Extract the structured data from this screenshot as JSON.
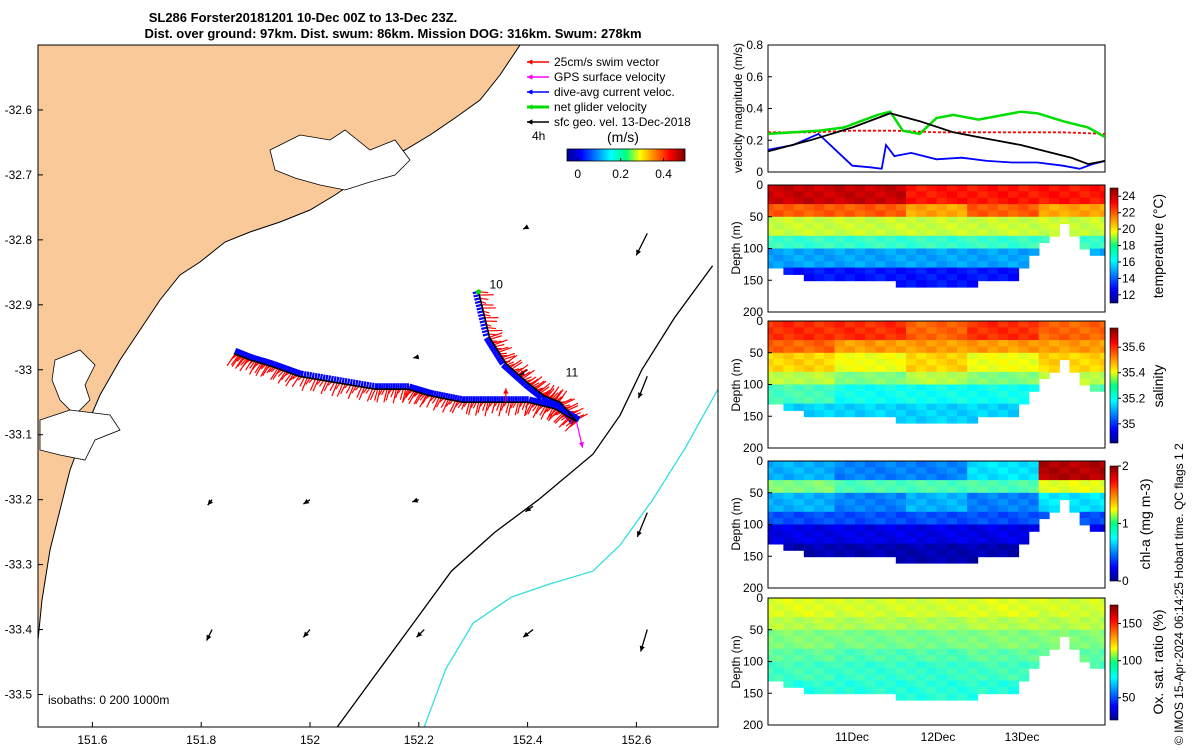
{
  "title": {
    "line1": "SL286 Forster20181201 10-Dec 00Z to 13-Dec 23Z.",
    "line2": "Dist. over ground: 97km. Dist. swum: 86km. Mission DOG: 316km. Swum: 278km"
  },
  "colors": {
    "land": "#f9c99a",
    "swim_vector": "#ff0000",
    "gps_velocity": "#ff00ff",
    "dive_avg": "#0000ff",
    "net_velocity": "#00dd00",
    "sfc_geo": "#000000",
    "isobath_200": "#000000",
    "isobath_1000": "#33dddd"
  },
  "map": {
    "legend": [
      {
        "label": "25cm/s swim vector",
        "color": "#ff0000"
      },
      {
        "label": "GPS surface velocity",
        "color": "#ff00ff"
      },
      {
        "label": "dive-avg current veloc.",
        "color": "#0000ff"
      },
      {
        "label": "net glider velocity",
        "color": "#00dd00"
      },
      {
        "label": "sfc geo. vel. 13-Dec-2018",
        "color": "#000000"
      }
    ],
    "interval_label": "4h",
    "colorbar": {
      "title": "(m/s)",
      "ticks": [
        "0",
        "0.2",
        "0.4"
      ],
      "range": [
        -0.05,
        0.5
      ]
    },
    "isobaths_label": "isobaths: 0   200  1000m",
    "xlim": [
      151.5,
      152.75
    ],
    "ylim": [
      -33.55,
      -32.5
    ],
    "xticks": [
      "151.6",
      "151.8",
      "152",
      "152.2",
      "152.4",
      "152.6"
    ],
    "yticks": [
      "-32.6",
      "-32.7",
      "-32.8",
      "-32.9",
      "-33",
      "-33.1",
      "-33.2",
      "-33.3",
      "-33.4",
      "-33.5"
    ],
    "day_labels": [
      {
        "text": "10",
        "lon": 152.33,
        "lat": -32.875
      },
      {
        "text": "11",
        "lon": 152.47,
        "lat": -33.01
      }
    ]
  },
  "chart_data": [
    {
      "type": "scatter",
      "title": "SL286 Forster20181201 10-Dec 00Z to 13-Dec 23Z.",
      "subtitle": "Dist. over ground: 97km. Dist. swum: 86km. Mission DOG: 316km. Swum: 278km",
      "xlabel": "",
      "ylabel": "",
      "xlim": [
        151.5,
        152.75
      ],
      "ylim": [
        -33.55,
        -32.5
      ],
      "glider_track": {
        "lon": [
          152.31,
          152.33,
          152.36,
          152.4,
          152.43,
          152.46,
          152.49,
          152.45,
          152.4,
          152.34,
          152.28,
          152.22,
          152.18,
          152.12,
          152.05,
          151.98,
          151.93,
          151.89,
          151.86
        ],
        "lat": [
          -32.88,
          -32.95,
          -32.99,
          -33.02,
          -33.04,
          -33.05,
          -33.08,
          -33.06,
          -33.05,
          -33.05,
          -33.05,
          -33.04,
          -33.03,
          -33.03,
          -33.02,
          -33.01,
          -32.995,
          -32.985,
          -32.975
        ]
      },
      "isobath_200": {
        "lon": [
          152.05,
          152.12,
          152.19,
          152.26,
          152.34,
          152.42,
          152.52,
          152.57,
          152.61,
          152.67,
          152.74
        ],
        "lat": [
          -33.55,
          -33.47,
          -33.39,
          -33.31,
          -33.25,
          -33.2,
          -33.13,
          -33.07,
          -33.0,
          -32.92,
          -32.84
        ]
      },
      "isobath_1000": {
        "lon": [
          152.21,
          152.25,
          152.3,
          152.37,
          152.44,
          152.52,
          152.57,
          152.63,
          152.69,
          152.75
        ],
        "lat": [
          -33.55,
          -33.46,
          -33.39,
          -33.35,
          -33.33,
          -33.31,
          -33.27,
          -33.2,
          -33.12,
          -33.03
        ]
      },
      "geo_vectors": [
        {
          "lon": 152.4,
          "lat": -32.78,
          "u": -0.04,
          "v": -0.02
        },
        {
          "lon": 152.62,
          "lat": -32.79,
          "u": -0.1,
          "v": -0.2
        },
        {
          "lon": 152.2,
          "lat": -32.98,
          "u": -0.05,
          "v": -0.01
        },
        {
          "lon": 152.4,
          "lat": -33.0,
          "u": -0.08,
          "v": -0.05
        },
        {
          "lon": 152.62,
          "lat": -33.01,
          "u": -0.08,
          "v": -0.2
        },
        {
          "lon": 151.82,
          "lat": -33.2,
          "u": -0.04,
          "v": -0.05
        },
        {
          "lon": 152.0,
          "lat": -33.2,
          "u": -0.06,
          "v": -0.04
        },
        {
          "lon": 152.2,
          "lat": -33.2,
          "u": -0.06,
          "v": -0.02
        },
        {
          "lon": 152.41,
          "lat": -33.21,
          "u": -0.07,
          "v": -0.05
        },
        {
          "lon": 152.62,
          "lat": -33.22,
          "u": -0.09,
          "v": -0.22
        },
        {
          "lon": 151.82,
          "lat": -33.4,
          "u": -0.05,
          "v": -0.1
        },
        {
          "lon": 152.0,
          "lat": -33.4,
          "u": -0.06,
          "v": -0.07
        },
        {
          "lon": 152.21,
          "lat": -33.4,
          "u": -0.07,
          "v": -0.07
        },
        {
          "lon": 152.41,
          "lat": -33.4,
          "u": -0.09,
          "v": -0.07
        },
        {
          "lon": 152.62,
          "lat": -33.4,
          "u": -0.06,
          "v": -0.2
        }
      ]
    },
    {
      "type": "line",
      "ylabel": "velocity magnitude (m/s)",
      "ylim": [
        0,
        0.8
      ],
      "yticks": [
        "0",
        "0.2",
        "0.4",
        "0.6",
        "0.8"
      ],
      "x_day_range": [
        10,
        14
      ],
      "series": [
        {
          "color": "#ff0000",
          "x": [
            10.0,
            10.5,
            11.0,
            11.5,
            12.0,
            12.5,
            13.0,
            13.5,
            14.0
          ],
          "values": [
            0.25,
            0.25,
            0.26,
            0.26,
            0.25,
            0.25,
            0.25,
            0.25,
            0.24
          ]
        },
        {
          "color": "#00dd00",
          "x": [
            10.0,
            10.3,
            10.6,
            10.9,
            11.1,
            11.3,
            11.45,
            11.6,
            11.8,
            12.0,
            12.2,
            12.5,
            12.8,
            13.0,
            13.2,
            13.5,
            13.8,
            14.0
          ],
          "values": [
            0.24,
            0.25,
            0.26,
            0.28,
            0.32,
            0.36,
            0.38,
            0.26,
            0.24,
            0.34,
            0.36,
            0.33,
            0.36,
            0.38,
            0.37,
            0.32,
            0.28,
            0.22
          ]
        },
        {
          "color": "#0000ff",
          "x": [
            10.0,
            10.3,
            10.6,
            10.8,
            11.0,
            11.2,
            11.35,
            11.4,
            11.5,
            11.7,
            12.0,
            12.3,
            12.6,
            12.9,
            13.2,
            13.5,
            13.7,
            13.85,
            14.0
          ],
          "values": [
            0.14,
            0.17,
            0.24,
            0.14,
            0.04,
            0.03,
            0.02,
            0.17,
            0.1,
            0.12,
            0.08,
            0.09,
            0.07,
            0.06,
            0.06,
            0.04,
            0.02,
            0.05,
            0.07
          ]
        },
        {
          "color": "#000000",
          "x": [
            10.0,
            10.5,
            11.0,
            11.45,
            11.8,
            12.2,
            12.6,
            13.0,
            13.3,
            13.6,
            13.8,
            14.0
          ],
          "values": [
            0.13,
            0.2,
            0.28,
            0.37,
            0.32,
            0.25,
            0.21,
            0.17,
            0.13,
            0.09,
            0.05,
            0.07
          ]
        }
      ]
    },
    {
      "type": "heatmap",
      "ylabel": "Depth (m)",
      "colorbar_label": "temperature (°C)",
      "ylim": [
        200,
        0
      ],
      "yticks": [
        "0",
        "50",
        "100",
        "150",
        "200"
      ],
      "colorbar_ticks": [
        "12",
        "14",
        "16",
        "18",
        "20",
        "22",
        "24"
      ],
      "crange": [
        11,
        25
      ],
      "depth": [
        0,
        25,
        50,
        75,
        100,
        125
      ],
      "values": [
        [
          24,
          24,
          23,
          23,
          23
        ],
        [
          22,
          22,
          21,
          22,
          21
        ],
        [
          19,
          19,
          19,
          19,
          19
        ],
        [
          17,
          17,
          17,
          17,
          17
        ],
        [
          15,
          15,
          15,
          15,
          15
        ],
        [
          13,
          13,
          13,
          13,
          13
        ]
      ]
    },
    {
      "type": "heatmap",
      "ylabel": "Depth (m)",
      "colorbar_label": "salinity",
      "ylim": [
        200,
        0
      ],
      "yticks": [
        "0",
        "50",
        "100",
        "150",
        "200"
      ],
      "colorbar_ticks": [
        "35",
        "35.2",
        "35.4",
        "35.6"
      ],
      "crange": [
        34.85,
        35.75
      ],
      "depth": [
        0,
        25,
        50,
        75,
        100,
        125
      ],
      "values": [
        [
          35.6,
          35.6,
          35.55,
          35.6,
          35.55
        ],
        [
          35.55,
          35.5,
          35.5,
          35.5,
          35.5
        ],
        [
          35.45,
          35.4,
          35.45,
          35.4,
          35.45
        ],
        [
          35.35,
          35.3,
          35.35,
          35.3,
          35.35
        ],
        [
          35.25,
          35.2,
          35.2,
          35.2,
          35.25
        ],
        [
          35.15,
          35.15,
          35.15,
          35.15,
          35.15
        ]
      ]
    },
    {
      "type": "heatmap",
      "ylabel": "Depth (m)",
      "colorbar_label": "chl-a (mg m-3)",
      "ylim": [
        200,
        0
      ],
      "yticks": [
        "0",
        "50",
        "100",
        "150",
        "200"
      ],
      "colorbar_ticks": [
        "0",
        "1",
        "2"
      ],
      "crange": [
        0,
        2
      ],
      "depth": [
        0,
        25,
        50,
        75,
        100,
        125
      ],
      "values": [
        [
          0.6,
          0.5,
          0.5,
          0.7,
          1.9
        ],
        [
          1.0,
          0.9,
          0.9,
          0.9,
          1.2
        ],
        [
          0.6,
          0.5,
          0.6,
          0.5,
          0.7
        ],
        [
          0.4,
          0.4,
          0.4,
          0.4,
          0.4
        ],
        [
          0.2,
          0.2,
          0.2,
          0.2,
          0.2
        ],
        [
          0.1,
          0.1,
          0.1,
          0.1,
          0.1
        ]
      ]
    },
    {
      "type": "heatmap",
      "ylabel": "Depth (m)",
      "colorbar_label": "Ox. sat. ratio (%)",
      "ylim": [
        200,
        0
      ],
      "yticks": [
        "0",
        "50",
        "100",
        "150",
        "200"
      ],
      "colorbar_ticks": [
        "50",
        "100",
        "150"
      ],
      "crange": [
        20,
        175
      ],
      "depth": [
        0,
        25,
        50,
        75,
        100,
        125
      ],
      "values": [
        [
          112,
          110,
          110,
          112,
          110
        ],
        [
          106,
          105,
          104,
          106,
          106
        ],
        [
          98,
          96,
          96,
          98,
          98
        ],
        [
          92,
          90,
          90,
          92,
          92
        ],
        [
          88,
          86,
          86,
          88,
          88
        ],
        [
          84,
          84,
          84,
          84,
          84
        ]
      ]
    }
  ],
  "time_axis": {
    "ticks": [
      "11Dec",
      "12Dec",
      "13Dec"
    ]
  },
  "credit": "© IMOS 15-Apr-2024 06:14:25 Hobart time. QC flags 1  2"
}
